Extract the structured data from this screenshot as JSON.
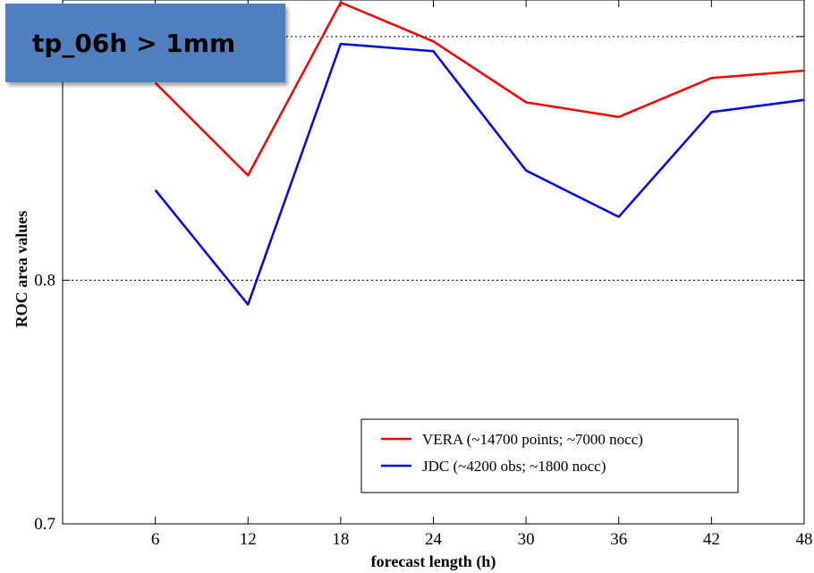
{
  "title_badge": "tp_06h > 1mm",
  "colors": {
    "series_1": "#ff0000",
    "series_2": "#0000ff",
    "badge": "#4f7fbf"
  },
  "chart_data": {
    "type": "line",
    "title": "tp_06h > 1mm",
    "xlabel": "forecast length (h)",
    "ylabel": "ROC area values",
    "x": [
      6,
      12,
      18,
      24,
      30,
      36,
      42,
      48
    ],
    "xticks": [
      "6",
      "12",
      "18",
      "24",
      "30",
      "36",
      "42",
      "48"
    ],
    "yticks": [
      "0.7",
      "0.8",
      "0.9"
    ],
    "xlim": [
      0,
      48
    ],
    "ylim": [
      0.7,
      0.915
    ],
    "grid": "horizontal dotted at 0.8 and 0.9",
    "legend_position": "bottom-right",
    "series": [
      {
        "name": "VERA (~14700 points; ~7000 nocc)",
        "color": "#ff0000",
        "values": [
          0.881,
          0.843,
          0.914,
          0.898,
          0.873,
          0.867,
          0.883,
          0.886
        ]
      },
      {
        "name": "JDC (~4200 obs; ~1800 nocc)",
        "color": "#0000ff",
        "values": [
          0.837,
          0.79,
          0.897,
          0.894,
          0.845,
          0.826,
          0.869,
          0.874
        ]
      }
    ]
  }
}
